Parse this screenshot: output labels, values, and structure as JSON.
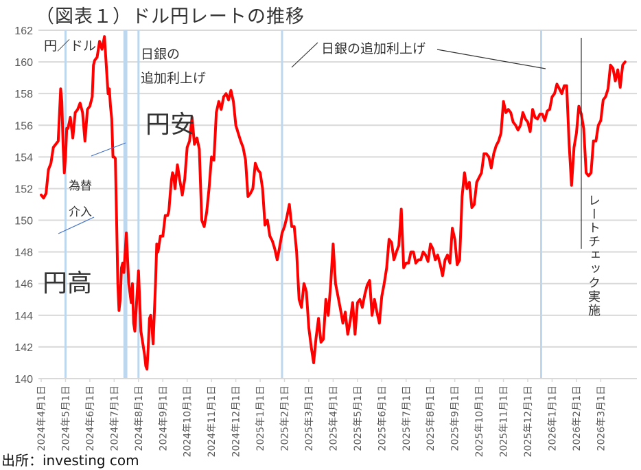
{
  "title": "（図表１）ドル円レートの推移",
  "source": "出所：investing com",
  "annotations": {
    "unit": "円／ドル",
    "boj_hike_1_line1": "日銀の",
    "boj_hike_1_line2": "追加利上げ",
    "boj_hike_2": "日銀の追加利上げ",
    "yen_weak": "円安",
    "yen_strong": "円高",
    "intervention_line1": "為替",
    "intervention_line2": "介入",
    "rate_check": "レートチェック実施"
  },
  "colors": {
    "line": "#ff0000",
    "grid": "#d9d9d9",
    "event_band": "#bdd7ee",
    "axis_text": "#595959"
  },
  "chart_data": {
    "type": "line",
    "title": "（図表１）ドル円レートの推移",
    "xlabel": "",
    "ylabel": "円／ドル",
    "ylim": [
      140,
      162
    ],
    "yticks": [
      140,
      142,
      144,
      146,
      148,
      150,
      152,
      154,
      156,
      158,
      160,
      162
    ],
    "grid": true,
    "legend": "none",
    "categories": [
      "2024年4月1日",
      "2024年5月1日",
      "2024年6月1日",
      "2024年7月1日",
      "2024年8月1日",
      "2024年9月1日",
      "2024年10月1日",
      "2024年11月1日",
      "2024年12月1日",
      "2025年1月1日",
      "2025年2月1日",
      "2025年3月1日",
      "2025年4月1日",
      "2025年5月1日",
      "2025年6月1日",
      "2025年7月1日",
      "2025年8月1日",
      "2025年9月1日",
      "2025年10月1日",
      "2025年11月1日",
      "2025年12月1日",
      "2026年1月1日",
      "2026年2月1日",
      "2026年3月1日"
    ],
    "series": [
      {
        "name": "ドル円",
        "x_month_index": [
          0.0,
          0.1,
          0.2,
          0.3,
          0.4,
          0.5,
          0.6,
          0.7,
          0.8,
          0.85,
          0.9,
          0.95,
          1.0,
          1.05,
          1.1,
          1.2,
          1.3,
          1.4,
          1.5,
          1.6,
          1.7,
          1.8,
          1.9,
          2.0,
          2.1,
          2.15,
          2.2,
          2.3,
          2.4,
          2.5,
          2.6,
          2.7,
          2.75,
          2.8,
          2.85,
          2.9,
          2.95,
          3.0,
          3.05,
          3.1,
          3.15,
          3.2,
          3.25,
          3.3,
          3.35,
          3.4,
          3.5,
          3.6,
          3.7,
          3.75,
          3.8,
          3.85,
          3.9,
          4.0,
          4.1,
          4.2,
          4.25,
          4.3,
          4.35,
          4.4,
          4.45,
          4.5,
          4.55,
          4.6,
          4.7,
          4.75,
          4.8,
          4.9,
          5.0,
          5.1,
          5.2,
          5.25,
          5.3,
          5.35,
          5.4,
          5.45,
          5.5,
          5.6,
          5.7,
          5.8,
          5.9,
          6.0,
          6.1,
          6.2,
          6.3,
          6.4,
          6.5,
          6.6,
          6.7,
          6.8,
          6.9,
          7.0,
          7.1,
          7.2,
          7.3,
          7.4,
          7.5,
          7.6,
          7.7,
          7.8,
          7.9,
          8.0,
          8.1,
          8.2,
          8.3,
          8.4,
          8.5,
          8.6,
          8.7,
          8.8,
          8.9,
          9.0,
          9.1,
          9.2,
          9.3,
          9.4,
          9.5,
          9.6,
          9.7,
          9.8,
          9.9,
          10.0,
          10.1,
          10.2,
          10.3,
          10.4,
          10.5,
          10.6,
          10.7,
          10.8,
          10.9,
          11.0,
          11.1,
          11.2,
          11.3,
          11.4,
          11.5,
          11.6,
          11.7,
          11.8,
          11.9,
          12.0,
          12.1,
          12.2,
          12.3,
          12.4,
          12.5,
          12.6,
          12.7,
          12.8,
          12.9,
          13.0,
          13.1,
          13.2,
          13.3,
          13.4,
          13.5,
          13.6,
          13.7,
          13.8,
          13.9,
          14.0,
          14.1,
          14.2,
          14.3,
          14.4,
          14.5,
          14.6,
          14.7,
          14.8,
          14.9,
          15.0,
          15.1,
          15.2,
          15.3,
          15.4,
          15.5,
          15.6,
          15.7,
          15.8,
          15.9,
          16.0,
          16.1,
          16.2,
          16.3,
          16.4,
          16.5,
          16.6,
          16.7,
          16.8,
          16.9,
          17.0,
          17.1,
          17.2,
          17.3,
          17.4,
          17.5,
          17.6,
          17.7,
          17.8,
          17.9,
          18.0,
          18.1,
          18.2,
          18.3,
          18.4,
          18.5,
          18.6,
          18.7,
          18.8,
          18.9,
          19.0,
          19.1,
          19.2,
          19.3,
          19.4,
          19.5,
          19.6,
          19.7,
          19.8,
          19.9,
          20.0,
          20.1,
          20.2,
          20.3,
          20.4,
          20.5,
          20.6,
          20.7,
          20.8,
          20.9,
          21.0,
          21.1,
          21.2,
          21.3,
          21.4,
          21.5,
          21.6,
          21.7,
          21.8,
          21.9,
          22.0,
          22.1,
          22.2,
          22.3,
          22.4,
          22.5,
          22.6,
          22.7,
          22.8,
          22.9,
          23.0,
          23.1,
          23.2,
          23.3,
          23.4,
          23.5,
          23.6,
          23.7,
          23.8,
          23.9,
          24.0
        ],
        "values": [
          151.6,
          151.4,
          151.7,
          153.2,
          153.6,
          154.6,
          154.8,
          155.0,
          158.3,
          157.5,
          154.8,
          153.0,
          154.0,
          155.8,
          155.8,
          156.5,
          155.2,
          156.8,
          157.0,
          157.4,
          156.8,
          155.0,
          157.0,
          157.2,
          157.8,
          159.8,
          160.1,
          160.3,
          161.3,
          160.8,
          161.6,
          159.2,
          158.0,
          158.3,
          157.2,
          156.4,
          154.0,
          154.0,
          153.9,
          150.0,
          146.0,
          144.3,
          145.0,
          147.0,
          147.3,
          146.7,
          149.2,
          146.0,
          144.8,
          146.0,
          143.5,
          143.0,
          144.3,
          146.8,
          143.0,
          142.0,
          141.5,
          140.8,
          140.6,
          142.0,
          143.8,
          144.0,
          143.3,
          142.2,
          146.0,
          148.5,
          148.0,
          149.0,
          149.0,
          150.3,
          150.3,
          150.6,
          151.6,
          152.5,
          153.0,
          152.8,
          152.0,
          153.5,
          152.5,
          151.6,
          152.6,
          154.6,
          155.0,
          156.5,
          154.8,
          155.2,
          154.5,
          150.0,
          149.6,
          150.5,
          152.0,
          154.0,
          153.8,
          156.8,
          157.5,
          157.0,
          157.8,
          158.0,
          157.6,
          158.2,
          157.5,
          156.0,
          155.5,
          155.0,
          154.6,
          153.8,
          151.5,
          151.7,
          152.0,
          153.6,
          153.2,
          153.0,
          152.0,
          149.7,
          150.0,
          149.0,
          148.7,
          148.2,
          147.5,
          148.3,
          149.2,
          149.6,
          150.2,
          151.0,
          149.6,
          149.6,
          148.0,
          145.0,
          144.5,
          146.0,
          145.5,
          143.2,
          142.0,
          141.0,
          142.6,
          143.8,
          142.3,
          142.5,
          145.0,
          144.0,
          146.0,
          148.5,
          146.0,
          145.2,
          144.4,
          143.5,
          144.2,
          142.8,
          143.6,
          144.8,
          142.8,
          144.8,
          145.0,
          144.5,
          145.3,
          145.9,
          146.2,
          144.0,
          145.0,
          144.2,
          143.5,
          145.2,
          146.0,
          147.0,
          148.8,
          148.6,
          147.5,
          148.0,
          148.4,
          150.7,
          147.0,
          147.3,
          147.3,
          148.0,
          148.0,
          147.3,
          147.5,
          147.5,
          148.0,
          147.8,
          147.4,
          148.5,
          148.2,
          147.5,
          147.8,
          147.2,
          146.5,
          147.5,
          147.8,
          147.3,
          149.5,
          148.8,
          147.2,
          147.5,
          151.5,
          153.0,
          152.0,
          152.4,
          150.8,
          151.0,
          152.4,
          152.7,
          153.0,
          154.2,
          154.2,
          154.0,
          153.3,
          154.2,
          154.7,
          155.0,
          155.5,
          157.5,
          156.8,
          157.0,
          156.8,
          156.2,
          156.0,
          155.7,
          156.0,
          156.8,
          156.4,
          156.2,
          155.6,
          157.0,
          156.5,
          156.4,
          156.7,
          156.7,
          156.3,
          156.9,
          157.0,
          157.8,
          158.0,
          158.6,
          158.3,
          158.0,
          158.5,
          158.5,
          154.8,
          152.2,
          154.6,
          155.5,
          157.2,
          156.7,
          155.8,
          153.0,
          152.8,
          153.0,
          155.0,
          155.0,
          156.0,
          156.3,
          157.6,
          157.8,
          158.3,
          159.8,
          159.6,
          158.8,
          159.5,
          158.4,
          159.8,
          160.0
        ]
      }
    ],
    "event_markers": [
      {
        "label": "為替介入",
        "month_index": 1.0
      },
      {
        "label": "為替介入",
        "month_index": 3.45
      },
      {
        "label": "日銀の追加利上げ",
        "month_index": 4.0
      },
      {
        "label": "日銀の追加利上げ",
        "month_index": 9.9
      },
      {
        "label": "日銀の追加利上げ",
        "month_index": 20.55
      },
      {
        "label": "レートチェック実施",
        "month_index": 21.95
      }
    ]
  }
}
